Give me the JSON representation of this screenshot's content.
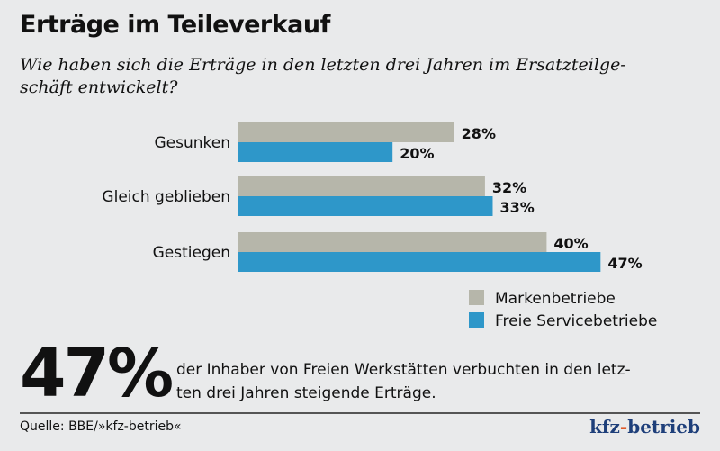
{
  "chart_data": {
    "type": "bar",
    "orientation": "horizontal",
    "title": "Erträge im Teileverkauf",
    "subtitle": "Wie haben sich die Erträge in den letzten drei Jahren im Ersatzteilgeschäft entwickelt?",
    "subtitle_lines": [
      "Wie haben sich die Erträge in den letzten drei Jahren im Ersatzteilge-",
      "schäft entwickelt?"
    ],
    "categories": [
      "Gesunken",
      "Gleich geblieben",
      "Gestiegen"
    ],
    "series": [
      {
        "name": "Markenbetriebe",
        "values": [
          28,
          32,
          40
        ],
        "labels": [
          "28%",
          "32%",
          "40%"
        ],
        "color": "#b6b6aa"
      },
      {
        "name": "Freie Servicebetriebe",
        "values": [
          20,
          33,
          47
        ],
        "labels": [
          "20%",
          "33%",
          "47%"
        ],
        "color": "#2e97c9"
      }
    ],
    "unit": "%",
    "grid": false,
    "legend_position": "bottom-right"
  },
  "highlight": {
    "value": "47%",
    "text_lines": [
      "der Inhaber von Freien Werkstätten verbuchten in den letz-",
      "ten drei Jahren steigende Erträge."
    ]
  },
  "footer": {
    "source": "Quelle: BBE/»kfz-betrieb«",
    "logo": "kfz-betrieb"
  }
}
